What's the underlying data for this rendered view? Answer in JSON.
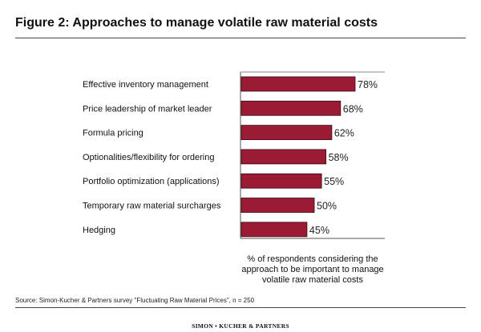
{
  "title": "Figure 2: Approaches to manage volatile raw material costs",
  "source": "Source: Simon-Kucher & Partners survey \"Fluctuating Raw Material Prices\", n = 250",
  "logo": "SIMON • KUCHER & PARTNERS",
  "chart_data": {
    "type": "bar",
    "orientation": "horizontal",
    "categories": [
      "Effective inventory management",
      "Price leadership of market leader",
      "Formula pricing",
      "Optionalities/flexibility for ordering",
      "Portfolio optimization (applications)",
      "Temporary raw material surcharges",
      "Hedging"
    ],
    "values": [
      78,
      68,
      62,
      58,
      55,
      50,
      45
    ],
    "data_labels": [
      "78%",
      "68%",
      "62%",
      "58%",
      "55%",
      "50%",
      "45%"
    ],
    "xlabel": "% of respondents considering the approach to be important to manage volatile raw material costs",
    "xlim": [
      0,
      100
    ],
    "grid": false,
    "bar_color": "#9b1b35"
  }
}
